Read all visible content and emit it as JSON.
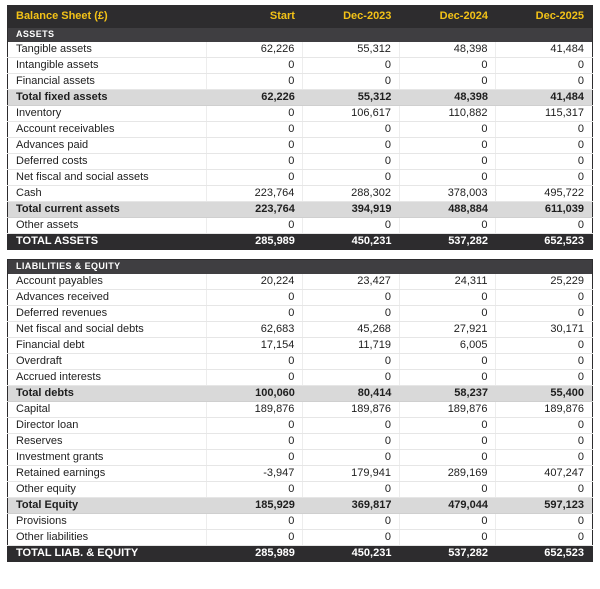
{
  "chart_data": {
    "type": "table",
    "title": "Balance Sheet (£)",
    "columns": [
      "Start",
      "Dec-2023",
      "Dec-2024",
      "Dec-2025"
    ],
    "sections": [
      {
        "header": "ASSETS",
        "rows": [
          {
            "label": "Tangible assets",
            "style": "normal",
            "values": [
              "62,226",
              "55,312",
              "48,398",
              "41,484"
            ]
          },
          {
            "label": "Intangible assets",
            "style": "normal",
            "values": [
              "0",
              "0",
              "0",
              "0"
            ]
          },
          {
            "label": "Financial assets",
            "style": "normal",
            "values": [
              "0",
              "0",
              "0",
              "0"
            ]
          },
          {
            "label": "Total fixed assets",
            "style": "subtotal",
            "values": [
              "62,226",
              "55,312",
              "48,398",
              "41,484"
            ]
          },
          {
            "label": "Inventory",
            "style": "normal",
            "values": [
              "0",
              "106,617",
              "110,882",
              "115,317"
            ]
          },
          {
            "label": "Account receivables",
            "style": "normal",
            "values": [
              "0",
              "0",
              "0",
              "0"
            ]
          },
          {
            "label": "Advances paid",
            "style": "normal",
            "values": [
              "0",
              "0",
              "0",
              "0"
            ]
          },
          {
            "label": "Deferred costs",
            "style": "normal",
            "values": [
              "0",
              "0",
              "0",
              "0"
            ]
          },
          {
            "label": "Net fiscal and social assets",
            "style": "normal",
            "values": [
              "0",
              "0",
              "0",
              "0"
            ]
          },
          {
            "label": "Cash",
            "style": "normal",
            "values": [
              "223,764",
              "288,302",
              "378,003",
              "495,722"
            ]
          },
          {
            "label": "Total current assets",
            "style": "subtotal",
            "values": [
              "223,764",
              "394,919",
              "488,884",
              "611,039"
            ]
          },
          {
            "label": "Other assets",
            "style": "normal",
            "values": [
              "0",
              "0",
              "0",
              "0"
            ]
          },
          {
            "label": "TOTAL ASSETS",
            "style": "grand",
            "values": [
              "285,989",
              "450,231",
              "537,282",
              "652,523"
            ]
          }
        ]
      },
      {
        "header": "LIABILITIES & EQUITY",
        "rows": [
          {
            "label": "Account payables",
            "style": "normal",
            "values": [
              "20,224",
              "23,427",
              "24,311",
              "25,229"
            ]
          },
          {
            "label": "Advances received",
            "style": "normal",
            "values": [
              "0",
              "0",
              "0",
              "0"
            ]
          },
          {
            "label": "Deferred revenues",
            "style": "normal",
            "values": [
              "0",
              "0",
              "0",
              "0"
            ]
          },
          {
            "label": "Net fiscal and social debts",
            "style": "normal",
            "values": [
              "62,683",
              "45,268",
              "27,921",
              "30,171"
            ]
          },
          {
            "label": "Financial debt",
            "style": "normal",
            "values": [
              "17,154",
              "11,719",
              "6,005",
              "0"
            ]
          },
          {
            "label": "Overdraft",
            "style": "normal",
            "values": [
              "0",
              "0",
              "0",
              "0"
            ]
          },
          {
            "label": "Accrued interests",
            "style": "normal",
            "values": [
              "0",
              "0",
              "0",
              "0"
            ]
          },
          {
            "label": "Total debts",
            "style": "subtotal",
            "values": [
              "100,060",
              "80,414",
              "58,237",
              "55,400"
            ]
          },
          {
            "label": "Capital",
            "style": "normal",
            "values": [
              "189,876",
              "189,876",
              "189,876",
              "189,876"
            ]
          },
          {
            "label": "Director loan",
            "style": "normal",
            "values": [
              "0",
              "0",
              "0",
              "0"
            ]
          },
          {
            "label": "Reserves",
            "style": "normal",
            "values": [
              "0",
              "0",
              "0",
              "0"
            ]
          },
          {
            "label": "Investment grants",
            "style": "normal",
            "values": [
              "0",
              "0",
              "0",
              "0"
            ]
          },
          {
            "label": "Retained earnings",
            "style": "normal",
            "values": [
              "-3,947",
              "179,941",
              "289,169",
              "407,247"
            ]
          },
          {
            "label": "Other equity",
            "style": "normal",
            "values": [
              "0",
              "0",
              "0",
              "0"
            ]
          },
          {
            "label": "Total Equity",
            "style": "subtotal",
            "values": [
              "185,929",
              "369,817",
              "479,044",
              "597,123"
            ]
          },
          {
            "label": "Provisions",
            "style": "normal",
            "values": [
              "0",
              "0",
              "0",
              "0"
            ]
          },
          {
            "label": "Other liabilities",
            "style": "normal",
            "values": [
              "0",
              "0",
              "0",
              "0"
            ]
          },
          {
            "label": "TOTAL LIAB. & EQUITY",
            "style": "grand",
            "values": [
              "285,989",
              "450,231",
              "537,282",
              "652,523"
            ]
          }
        ]
      }
    ],
    "layout": {
      "legend": "none",
      "grid": "table-borders"
    }
  },
  "colors": {
    "header_bg": "#2d2c2e",
    "header_text": "#f3c217",
    "section_header_bg": "#3f3e41",
    "subtotal_bg": "#d9d9d9",
    "grand_total_bg": "#2d2c2e",
    "row_border": "#e6e6e6",
    "text": "#1e1e1e"
  }
}
